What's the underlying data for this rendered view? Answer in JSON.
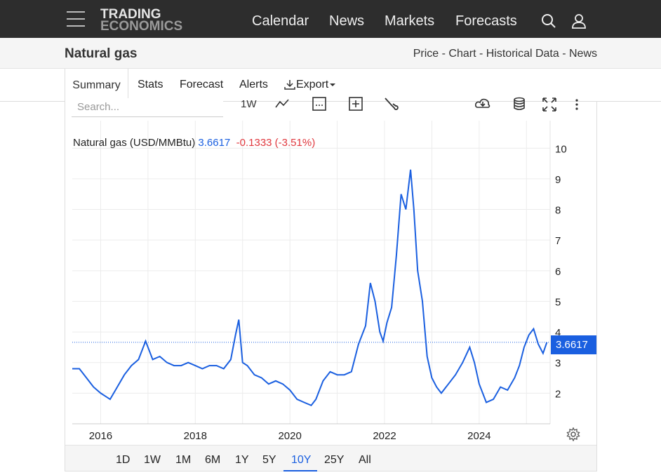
{
  "brand": {
    "line1": "TRADING",
    "line2": "ECONOMICS"
  },
  "nav": {
    "calendar": "Calendar",
    "news": "News",
    "markets": "Markets",
    "forecasts": "Forecasts"
  },
  "page": {
    "title": "Natural gas",
    "subnav": "Price - Chart - Historical Data - News"
  },
  "tabs": {
    "summary": "Summary",
    "stats": "Stats",
    "forecast": "Forecast",
    "alerts": "Alerts",
    "export": "Export"
  },
  "toolbar": {
    "search_placeholder": "Search...",
    "interval": "1W"
  },
  "legend": {
    "name": "Natural gas (USD/MMBtu)",
    "value": "3.6617",
    "change": "-0.1333 (-3.51%)"
  },
  "price_badge": "3.6617",
  "ranges": [
    "1D",
    "1W",
    "1M",
    "6M",
    "1Y",
    "5Y",
    "10Y",
    "25Y",
    "All"
  ],
  "active_range": "10Y",
  "colors": {
    "line": "#1a5fe0",
    "change_negative": "#e0383e",
    "accent": "#1a5fe0"
  },
  "chart_data": {
    "type": "line",
    "title": "Natural gas (USD/MMBtu)",
    "xlabel": "",
    "ylabel": "",
    "x_ticks": [
      "2016",
      "2018",
      "2020",
      "2022",
      "2024"
    ],
    "y_ticks": [
      2,
      3,
      4,
      5,
      6,
      7,
      8,
      9,
      10
    ],
    "xlim": [
      2015.4,
      2025.5
    ],
    "ylim": [
      1.0,
      10.9
    ],
    "grid": true,
    "last_value": 3.6617,
    "series": [
      {
        "x": [
          2015.4,
          2015.55,
          2015.7,
          2015.85,
          2016.0,
          2016.1,
          2016.2,
          2016.35,
          2016.5,
          2016.65,
          2016.8,
          2016.95,
          2017.1,
          2017.25,
          2017.4,
          2017.55,
          2017.7,
          2017.85,
          2018.0,
          2018.15,
          2018.3,
          2018.45,
          2018.6,
          2018.75,
          2018.85,
          2018.92,
          2019.0,
          2019.1,
          2019.25,
          2019.4,
          2019.55,
          2019.7,
          2019.85,
          2020.0,
          2020.15,
          2020.3,
          2020.45,
          2020.55,
          2020.7,
          2020.85,
          2021.0,
          2021.15,
          2021.3,
          2021.45,
          2021.6,
          2021.7,
          2021.8,
          2021.9,
          2021.97,
          2022.05,
          2022.15,
          2022.25,
          2022.35,
          2022.45,
          2022.55,
          2022.62,
          2022.7,
          2022.8,
          2022.9,
          2023.0,
          2023.1,
          2023.2,
          2023.35,
          2023.5,
          2023.65,
          2023.8,
          2023.9,
          2024.0,
          2024.15,
          2024.3,
          2024.45,
          2024.6,
          2024.75,
          2024.85,
          2024.95,
          2025.05,
          2025.15,
          2025.25,
          2025.35,
          2025.43
        ],
        "y": [
          2.8,
          2.8,
          2.5,
          2.2,
          2.0,
          1.9,
          1.8,
          2.2,
          2.6,
          2.9,
          3.1,
          3.7,
          3.1,
          3.2,
          3.0,
          2.9,
          2.9,
          3.0,
          2.9,
          2.8,
          2.9,
          2.9,
          2.8,
          3.1,
          3.9,
          4.4,
          3.0,
          2.9,
          2.6,
          2.5,
          2.3,
          2.4,
          2.3,
          2.1,
          1.8,
          1.7,
          1.6,
          1.8,
          2.4,
          2.7,
          2.6,
          2.6,
          2.7,
          3.6,
          4.2,
          5.6,
          5.0,
          4.0,
          3.7,
          4.3,
          4.8,
          6.5,
          8.5,
          8.0,
          9.3,
          8.0,
          6.0,
          5.0,
          3.2,
          2.5,
          2.2,
          2.0,
          2.3,
          2.6,
          3.0,
          3.5,
          3.0,
          2.3,
          1.7,
          1.8,
          2.2,
          2.1,
          2.5,
          2.9,
          3.5,
          3.9,
          4.1,
          3.6,
          3.3,
          3.66
        ]
      }
    ]
  }
}
